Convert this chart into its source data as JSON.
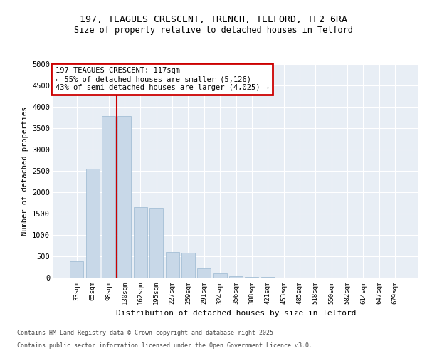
{
  "title1": "197, TEAGUES CRESCENT, TRENCH, TELFORD, TF2 6RA",
  "title2": "Size of property relative to detached houses in Telford",
  "xlabel": "Distribution of detached houses by size in Telford",
  "ylabel": "Number of detached properties",
  "bar_color": "#c8d8e8",
  "bar_edgecolor": "#9ab8d0",
  "vline_color": "#cc0000",
  "vline_x_index": 2.5,
  "annotation_text": "197 TEAGUES CRESCENT: 117sqm\n← 55% of detached houses are smaller (5,126)\n43% of semi-detached houses are larger (4,025) →",
  "annotation_box_color": "#cc0000",
  "categories": [
    "33sqm",
    "65sqm",
    "98sqm",
    "130sqm",
    "162sqm",
    "195sqm",
    "227sqm",
    "259sqm",
    "291sqm",
    "324sqm",
    "356sqm",
    "388sqm",
    "421sqm",
    "453sqm",
    "485sqm",
    "518sqm",
    "550sqm",
    "582sqm",
    "614sqm",
    "647sqm",
    "679sqm"
  ],
  "values": [
    390,
    2550,
    3780,
    3780,
    1650,
    1640,
    600,
    590,
    210,
    100,
    40,
    15,
    10,
    5,
    5,
    3,
    2,
    2,
    1,
    1,
    1
  ],
  "ylim": [
    0,
    5000
  ],
  "yticks": [
    0,
    500,
    1000,
    1500,
    2000,
    2500,
    3000,
    3500,
    4000,
    4500,
    5000
  ],
  "background_color": "#e8eef5",
  "footer1": "Contains HM Land Registry data © Crown copyright and database right 2025.",
  "footer2": "Contains public sector information licensed under the Open Government Licence v3.0."
}
